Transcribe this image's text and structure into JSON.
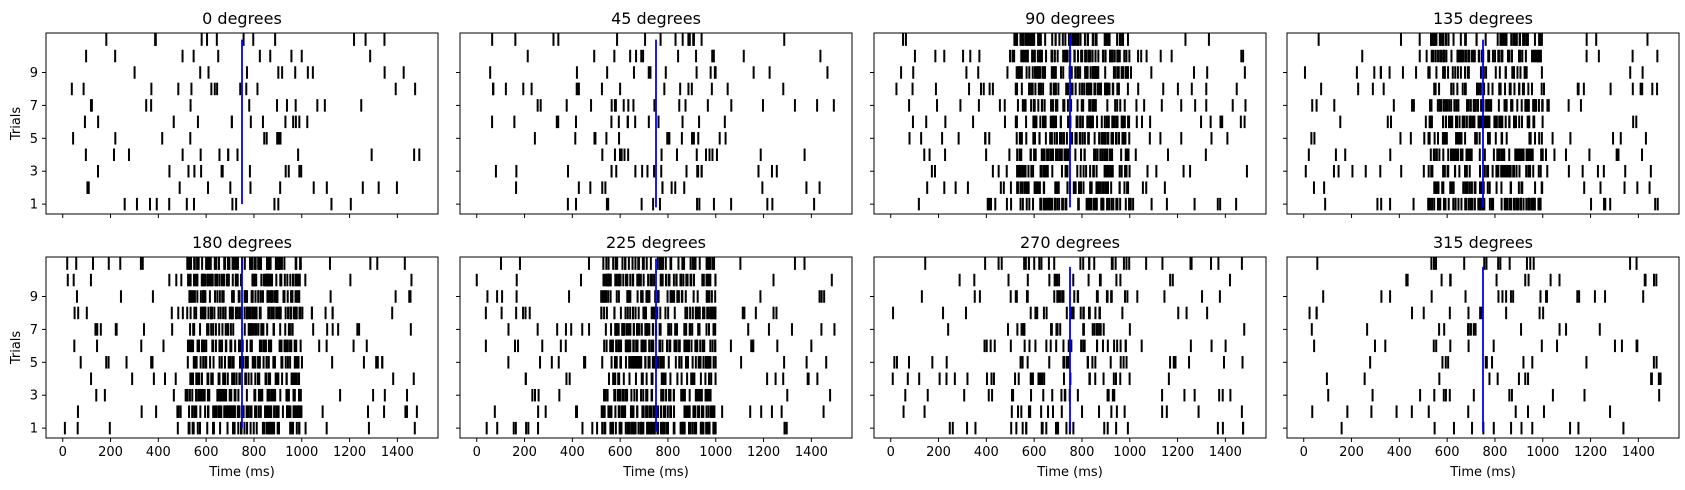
{
  "chart_data": {
    "type": "raster",
    "xlim": [
      -70,
      1570
    ],
    "ylim": [
      0.4,
      11.4
    ],
    "xticks": [
      0,
      200,
      400,
      600,
      800,
      1000,
      1200,
      1400
    ],
    "yticks": [
      1,
      3,
      5,
      7,
      9
    ],
    "xlabel": "Time (ms)",
    "ylabel": "Trials",
    "spike_color": "#000000",
    "marker_color": "#0000ff",
    "panels": [
      {
        "title": "0 degrees",
        "rate": 8,
        "boost": 0.4,
        "marker": {
          "x": 750,
          "y0": 1,
          "y1": 11.0
        }
      },
      {
        "title": "45 degrees",
        "rate": 10,
        "boost": 0.6,
        "marker": {
          "x": 750,
          "y0": 0.8,
          "y1": 11.0
        }
      },
      {
        "title": "90 degrees",
        "rate": 18,
        "boost": 2.5,
        "marker": {
          "x": 750,
          "y0": 0.8,
          "y1": 11.3
        }
      },
      {
        "title": "135 degrees",
        "rate": 14,
        "boost": 3.0,
        "marker": {
          "x": 750,
          "y0": 0.8,
          "y1": 11.0
        }
      },
      {
        "title": "180 degrees",
        "rate": 16,
        "boost": 3.5,
        "marker": {
          "x": 750,
          "y0": 1.0,
          "y1": 11.3
        }
      },
      {
        "title": "225 degrees",
        "rate": 17,
        "boost": 3.0,
        "marker": {
          "x": 750,
          "y0": 0.8,
          "y1": 11.3
        }
      },
      {
        "title": "270 degrees",
        "rate": 13,
        "boost": 1.0,
        "marker": {
          "x": 750,
          "y0": 0.8,
          "y1": 10.8
        }
      },
      {
        "title": "315 degrees",
        "rate": 9,
        "boost": 0.5,
        "marker": {
          "x": 750,
          "y0": 0.8,
          "y1": 10.8
        }
      }
    ]
  }
}
